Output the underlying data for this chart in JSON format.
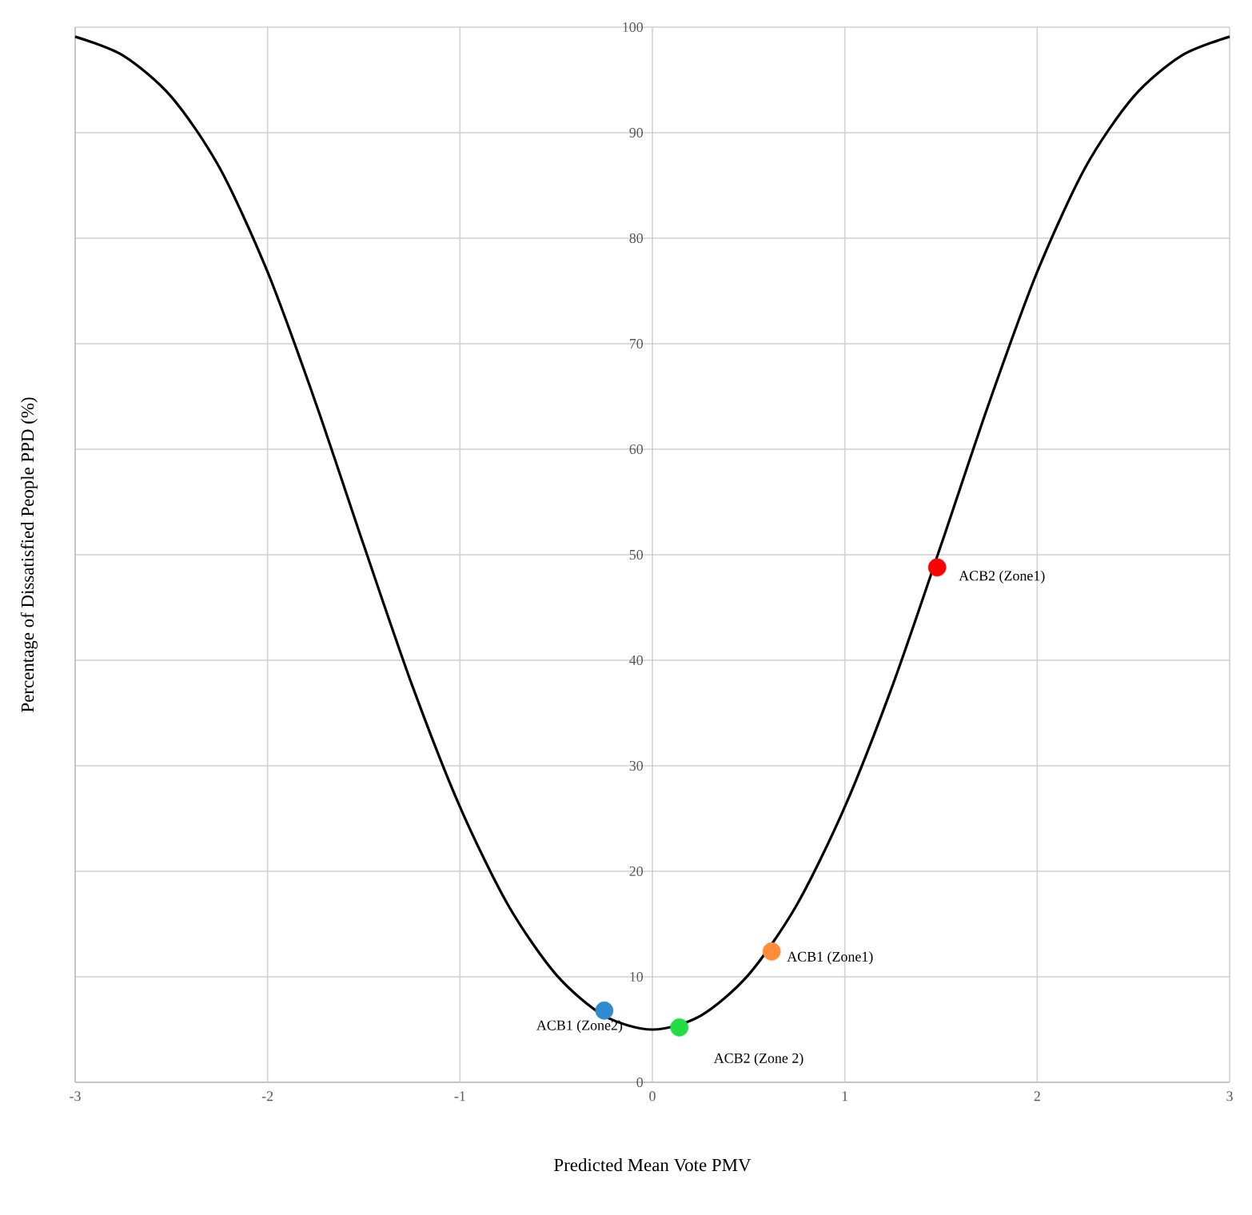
{
  "chart_data": {
    "type": "line",
    "xlabel": "Predicted Mean Vote PMV",
    "ylabel": "Percentage of Dissatisfied People PPD (%)",
    "xlim": [
      -3,
      3
    ],
    "ylim": [
      0,
      100
    ],
    "xticks": [
      -3,
      -2,
      -1,
      0,
      1,
      2,
      3
    ],
    "yticks": [
      0,
      10,
      20,
      30,
      40,
      50,
      60,
      70,
      80,
      90,
      100
    ],
    "grid": true,
    "series": [
      {
        "color": "#000000",
        "x": [
          -3,
          -2.75,
          -2.5,
          -2.25,
          -2,
          -1.75,
          -1.5,
          -1.25,
          -1,
          -0.75,
          -0.5,
          -0.25,
          0,
          0.25,
          0.5,
          0.75,
          1,
          1.25,
          1.5,
          1.75,
          2,
          2.25,
          2.5,
          2.75,
          3
        ],
        "values": [
          99.1,
          97.3,
          93.4,
          86.7,
          76.8,
          64.4,
          50.9,
          37.7,
          26.1,
          16.8,
          10.2,
          6.3,
          5,
          6.3,
          10.2,
          16.8,
          26.1,
          37.7,
          50.9,
          64.4,
          76.8,
          86.7,
          93.4,
          97.3,
          99.1
        ]
      },
      {
        "type": "scatter",
        "name": "ACB1 (Zone2)",
        "color": "#2e8bd0",
        "x": [
          -0.25
        ],
        "values": [
          6.8
        ]
      },
      {
        "type": "scatter",
        "name": "ACB2 (Zone 2)",
        "color": "#22dd44",
        "x": [
          0.14
        ],
        "values": [
          5.2
        ]
      },
      {
        "type": "scatter",
        "name": "ACB1 (Zone1)",
        "color": "#ff8c3a",
        "x": [
          0.62
        ],
        "values": [
          12.4
        ]
      },
      {
        "type": "scatter",
        "name": "ACB2 (Zone1)",
        "color": "#ff0000",
        "x": [
          1.48
        ],
        "values": [
          48.8
        ]
      }
    ]
  }
}
